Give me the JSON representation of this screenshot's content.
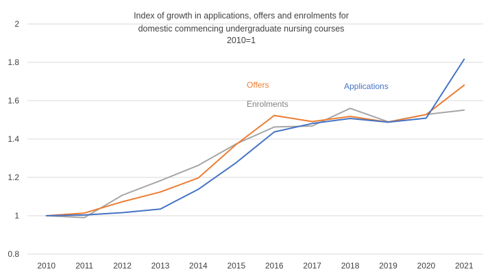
{
  "chart_data": {
    "type": "line",
    "title_lines": [
      "Index of growth in applications, offers and enrolments for",
      "domestic commencing undergraduate nursing courses",
      "2010=1"
    ],
    "xlabel": "",
    "ylabel": "",
    "categories": [
      "2010",
      "2011",
      "2012",
      "2013",
      "2014",
      "2015",
      "2016",
      "2017",
      "2018",
      "2019",
      "2020",
      "2021"
    ],
    "ylim": [
      0.8,
      2
    ],
    "yticks": [
      0.8,
      1,
      1.2,
      1.4,
      1.6,
      1.8,
      2
    ],
    "ytick_labels": [
      "0.8",
      "1",
      "1.2",
      "1.4",
      "1.6",
      "1.8",
      "2"
    ],
    "grid": "horizontal",
    "legend": "inline labels",
    "series": [
      {
        "name": "Applications",
        "color": "#4472C4",
        "values": [
          1.0,
          1.004,
          1.016,
          1.035,
          1.138,
          1.277,
          1.437,
          1.481,
          1.507,
          1.488,
          1.509,
          1.816
        ]
      },
      {
        "name": "Offers",
        "color": "#ED7D31",
        "values": [
          1.0,
          1.014,
          1.073,
          1.124,
          1.197,
          1.372,
          1.523,
          1.491,
          1.518,
          1.488,
          1.528,
          1.681
        ]
      },
      {
        "name": "Enrolments",
        "color": "#A5A5A5",
        "values": [
          1.0,
          0.99,
          1.107,
          1.183,
          1.263,
          1.375,
          1.463,
          1.468,
          1.56,
          1.49,
          1.528,
          1.551
        ]
      }
    ]
  }
}
